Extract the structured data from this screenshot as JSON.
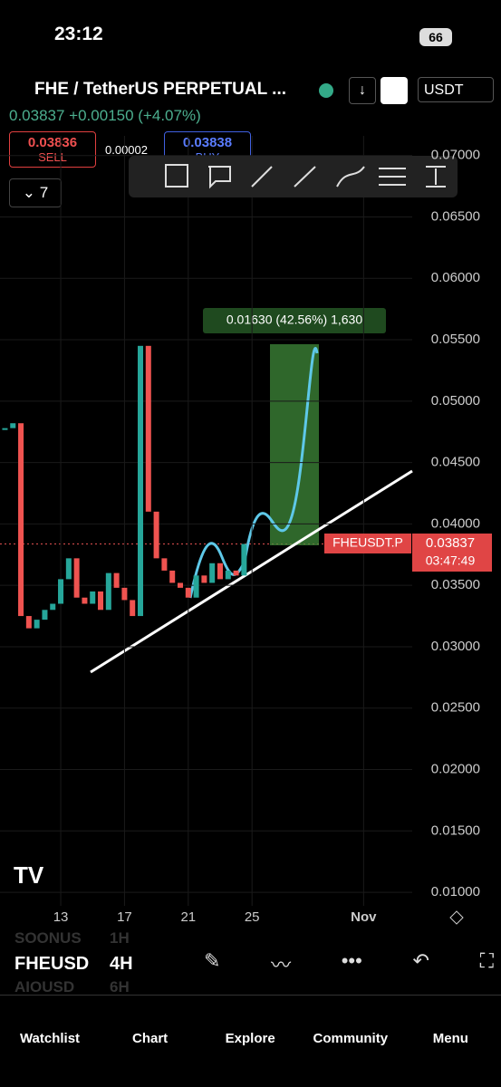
{
  "status_bar": {
    "time": "23:12",
    "battery": "66"
  },
  "header": {
    "symbol": "FHE / TetherUS PERPETUAL ...",
    "currency": "USDT",
    "price_line": "0.03837 +0.00150 (+4.07%)"
  },
  "order": {
    "sell_price": "0.03836",
    "sell_label": "SELL",
    "spread": "0.00002",
    "buy_price": "0.03838",
    "buy_label": "BUY",
    "indicators": "7"
  },
  "chart": {
    "type": "candlestick",
    "up_color": "#26a69a",
    "down_color": "#ef5350",
    "x": [
      9.5,
      10,
      10.5,
      11,
      11.5,
      12,
      12.5,
      13,
      13.5,
      14,
      14.5,
      15,
      15.5,
      16,
      16.5,
      17,
      17.5,
      18,
      18.5,
      19,
      19.5,
      20,
      20.5,
      21,
      21.5,
      22,
      22.5,
      23,
      23.5,
      24,
      24.5
    ],
    "close": [
      0.0478,
      0.0482,
      0.0325,
      0.0315,
      0.0322,
      0.033,
      0.0335,
      0.0355,
      0.0372,
      0.034,
      0.0335,
      0.0345,
      0.033,
      0.036,
      0.0348,
      0.0338,
      0.0325,
      0.0545,
      0.041,
      0.0372,
      0.0362,
      0.0352,
      0.0348,
      0.034,
      0.0358,
      0.0352,
      0.0368,
      0.0355,
      0.0362,
      0.0358,
      0.03837
    ],
    "xlim": [
      9.19,
      35.05
    ],
    "xticks": [
      13,
      17,
      21,
      25,
      {
        "value": 32,
        "label": "Nov"
      }
    ],
    "ylim": [
      0.0089,
      0.0716
    ],
    "yticks": [
      {
        "value": 0.07,
        "label": "0.07000"
      },
      {
        "value": 0.065,
        "label": "0.06500"
      },
      {
        "value": 0.06,
        "label": "0.06000"
      },
      {
        "value": 0.055,
        "label": "0.05500"
      },
      {
        "value": 0.05,
        "label": "0.05000"
      },
      {
        "value": 0.045,
        "label": "0.04500"
      },
      {
        "value": 0.04,
        "label": "0.04000"
      },
      {
        "value": 0.035,
        "label": "0.03500"
      },
      {
        "value": 0.03,
        "label": "0.03000"
      },
      {
        "value": 0.025,
        "label": "0.02500"
      },
      {
        "value": 0.02,
        "label": "0.02000"
      },
      {
        "value": 0.015,
        "label": "0.01500"
      },
      {
        "value": 0.01,
        "label": "0.01000"
      }
    ],
    "measure_label": "0.01630 (42.56%) 1,630",
    "price_tag": {
      "symbol": "FHEUSDT.P",
      "price": "0.03837",
      "countdown": "03:47:49"
    }
  },
  "symbols": [
    {
      "name": "SOONUS",
      "interval": "1H"
    },
    {
      "name": "FHEUSD",
      "interval": "4H"
    },
    {
      "name": "AIOUSD",
      "interval": "6H"
    }
  ],
  "tabs": [
    "Watchlist",
    "Chart",
    "Explore",
    "Community",
    "Menu"
  ]
}
